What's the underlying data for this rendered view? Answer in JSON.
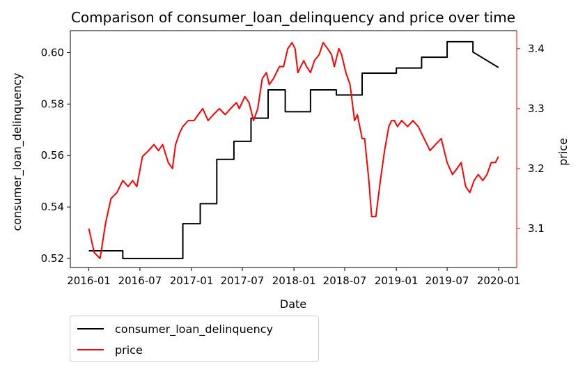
{
  "chart_data": {
    "type": "line",
    "title": "Comparison of consumer_loan_delinquency and price over time",
    "xlabel": "Date",
    "ylabel_left": "consumer_loan_delinquency",
    "ylabel_right": "price",
    "x_ticks": [
      "2016-01",
      "2016-07",
      "2017-01",
      "2017-07",
      "2018-01",
      "2018-07",
      "2019-01",
      "2019-07",
      "2020-01"
    ],
    "y_left_ticks": [
      "0.52",
      "0.54",
      "0.56",
      "0.58",
      "0.60"
    ],
    "y_right_ticks": [
      "3.1",
      "3.2",
      "3.3",
      "3.4"
    ],
    "ylim_left": [
      0.5165,
      0.6085
    ],
    "ylim_right": [
      3.035,
      3.43
    ],
    "xlim": [
      "2015-10-27",
      "2020-03-05"
    ],
    "grid": false,
    "legend_position": "below-left",
    "colors": {
      "left_series": "#000000",
      "right_series": "#ff0000",
      "right_axis": "#ff0000"
    },
    "series": [
      {
        "name": "consumer_loan_delinquency",
        "axis": "left",
        "color": "#000000",
        "x": [
          "2016-01-01",
          "2016-05-01",
          "2016-05-01",
          "2016-12-01",
          "2016-12-01",
          "2017-02-01",
          "2017-02-01",
          "2017-04-01",
          "2017-04-01",
          "2017-06-01",
          "2017-06-01",
          "2017-08-01",
          "2017-08-01",
          "2017-10-01",
          "2017-10-01",
          "2017-12-01",
          "2017-12-01",
          "2018-03-01",
          "2018-03-01",
          "2018-06-01",
          "2018-06-01",
          "2018-09-01",
          "2018-09-01",
          "2019-01-01",
          "2019-01-01",
          "2019-04-01",
          "2019-04-01",
          "2019-07-01",
          "2019-07-01",
          "2019-10-01",
          "2019-10-01",
          "2019-12-31"
        ],
        "values": [
          0.523,
          0.523,
          0.52,
          0.52,
          0.5335,
          0.5335,
          0.5413,
          0.5413,
          0.5585,
          0.5585,
          0.5655,
          0.5655,
          0.5745,
          0.5745,
          0.5855,
          0.5855,
          0.577,
          0.577,
          0.5855,
          0.5855,
          0.5835,
          0.5835,
          0.592,
          0.592,
          0.594,
          0.594,
          0.5982,
          0.5982,
          0.6042,
          0.6042,
          0.6002,
          0.5942
        ]
      },
      {
        "name": "price",
        "axis": "right",
        "color": "#ff0000",
        "x": [
          "2016-01-01",
          "2016-01-20",
          "2016-02-10",
          "2016-03-01",
          "2016-03-20",
          "2016-04-10",
          "2016-05-01",
          "2016-05-20",
          "2016-06-05",
          "2016-06-20",
          "2016-07-10",
          "2016-08-01",
          "2016-08-20",
          "2016-09-05",
          "2016-09-20",
          "2016-10-10",
          "2016-10-25",
          "2016-11-05",
          "2016-11-20",
          "2016-12-01",
          "2016-12-20",
          "2017-01-10",
          "2017-01-25",
          "2017-02-10",
          "2017-03-01",
          "2017-03-20",
          "2017-04-10",
          "2017-05-01",
          "2017-05-20",
          "2017-06-10",
          "2017-06-20",
          "2017-07-10",
          "2017-07-25",
          "2017-08-10",
          "2017-08-25",
          "2017-09-10",
          "2017-09-25",
          "2017-10-05",
          "2017-10-20",
          "2017-11-10",
          "2017-11-25",
          "2017-12-10",
          "2017-12-25",
          "2018-01-05",
          "2018-01-15",
          "2018-01-25",
          "2018-02-05",
          "2018-02-15",
          "2018-03-01",
          "2018-03-15",
          "2018-04-01",
          "2018-04-15",
          "2018-05-01",
          "2018-05-15",
          "2018-05-25",
          "2018-06-10",
          "2018-06-20",
          "2018-07-05",
          "2018-07-20",
          "2018-08-05",
          "2018-08-15",
          "2018-09-01",
          "2018-09-10",
          "2018-09-25",
          "2018-10-05",
          "2018-10-20",
          "2018-11-05",
          "2018-11-20",
          "2018-12-05",
          "2018-12-15",
          "2018-12-25",
          "2019-01-05",
          "2019-01-20",
          "2019-02-10",
          "2019-03-01",
          "2019-03-20",
          "2019-04-10",
          "2019-05-01",
          "2019-05-20",
          "2019-06-10",
          "2019-07-01",
          "2019-07-20",
          "2019-08-05",
          "2019-08-20",
          "2019-09-05",
          "2019-09-20",
          "2019-10-05",
          "2019-10-20",
          "2019-11-05",
          "2019-11-20",
          "2019-12-05",
          "2019-12-20",
          "2019-12-31"
        ],
        "values": [
          3.1,
          3.06,
          3.05,
          3.11,
          3.15,
          3.16,
          3.18,
          3.17,
          3.18,
          3.17,
          3.22,
          3.23,
          3.24,
          3.23,
          3.24,
          3.21,
          3.2,
          3.24,
          3.26,
          3.27,
          3.28,
          3.28,
          3.29,
          3.3,
          3.28,
          3.29,
          3.3,
          3.29,
          3.3,
          3.31,
          3.3,
          3.32,
          3.31,
          3.28,
          3.3,
          3.35,
          3.36,
          3.34,
          3.35,
          3.37,
          3.37,
          3.4,
          3.41,
          3.4,
          3.36,
          3.37,
          3.38,
          3.37,
          3.36,
          3.38,
          3.39,
          3.41,
          3.4,
          3.39,
          3.37,
          3.4,
          3.39,
          3.36,
          3.34,
          3.28,
          3.29,
          3.25,
          3.25,
          3.18,
          3.12,
          3.12,
          3.18,
          3.23,
          3.27,
          3.28,
          3.28,
          3.27,
          3.28,
          3.27,
          3.28,
          3.27,
          3.25,
          3.23,
          3.24,
          3.25,
          3.21,
          3.19,
          3.2,
          3.21,
          3.17,
          3.16,
          3.18,
          3.19,
          3.18,
          3.19,
          3.21,
          3.21,
          3.22
        ]
      }
    ]
  }
}
